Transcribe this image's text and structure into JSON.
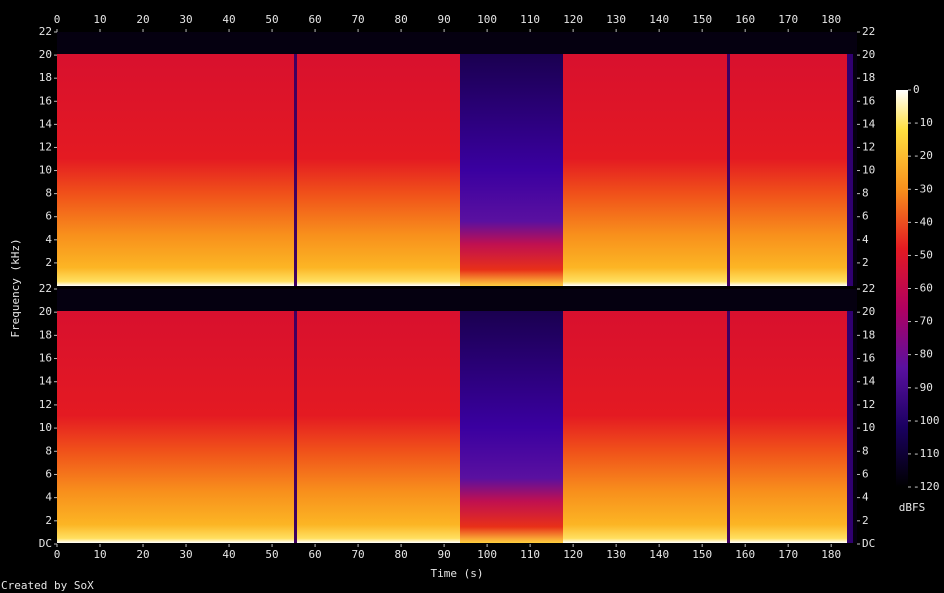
{
  "chart_data": [
    {
      "type": "spectrogram",
      "ylabel": "Frequency (kHz)",
      "xlim": [
        0,
        186
      ],
      "xticks": [
        0,
        10,
        20,
        30,
        40,
        50,
        60,
        70,
        80,
        90,
        100,
        110,
        120,
        130,
        140,
        150,
        160,
        170,
        180
      ],
      "ylim": [
        0,
        22
      ],
      "yticks": [
        2,
        4,
        6,
        8,
        10,
        12,
        14,
        16,
        18,
        20,
        22
      ]
    },
    {
      "type": "spectrogram",
      "xlabel": "Time (s)",
      "xlim": [
        0,
        186
      ],
      "xticks": [
        0,
        10,
        20,
        30,
        40,
        50,
        60,
        70,
        80,
        90,
        100,
        110,
        120,
        130,
        140,
        150,
        160,
        170,
        180
      ],
      "ylim": [
        0,
        22
      ],
      "yticks": [
        {
          "value": 0,
          "label": "DC"
        },
        2,
        4,
        6,
        8,
        10,
        12,
        14,
        16,
        18,
        20,
        22
      ]
    }
  ],
  "colorbar": {
    "label": "dBFS",
    "lim": [
      -120,
      0
    ],
    "ticks": [
      0,
      -10,
      -20,
      -30,
      -40,
      -50,
      -60,
      -70,
      -80,
      -90,
      -100,
      -110,
      -120
    ]
  },
  "credit": "Created by SoX"
}
